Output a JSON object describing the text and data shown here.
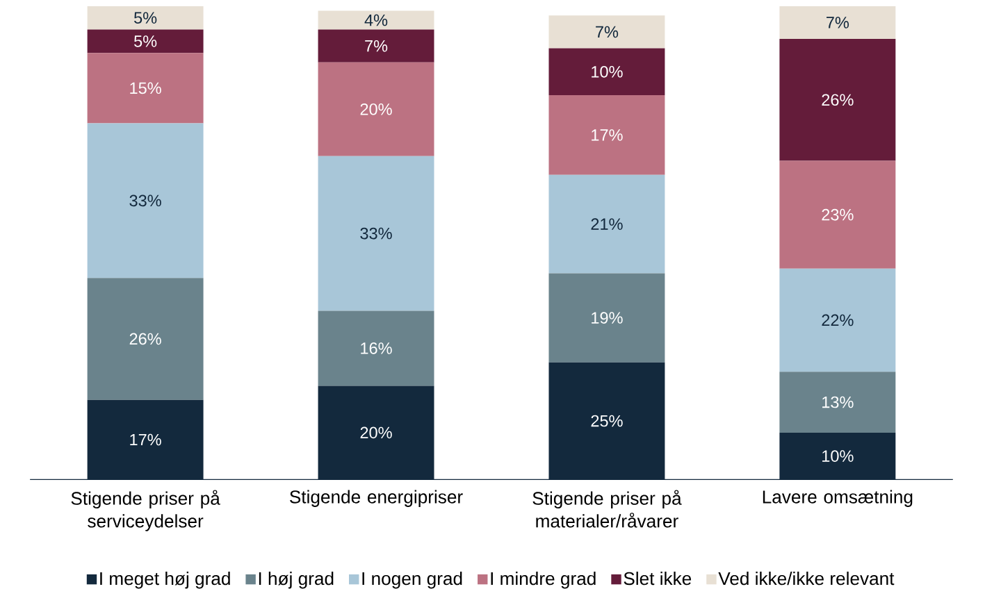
{
  "chart_data": {
    "type": "bar",
    "stacked": true,
    "legend": "bottom",
    "categories": [
      "Stigende priser på serviceydelser",
      "Stigende energipriser",
      "Stigende priser på materialer/råvarer",
      "Lavere omsætning"
    ],
    "series": [
      {
        "name": "I meget høj grad",
        "color": "#13293d",
        "values": [
          17,
          20,
          25,
          10
        ],
        "value_labels": [
          "17%",
          "20%",
          "25%",
          "10%"
        ]
      },
      {
        "name": "I høj grad",
        "color": "#6a838c",
        "values": [
          26,
          16,
          19,
          13
        ],
        "value_labels": [
          "26%",
          "16%",
          "19%",
          "13%"
        ]
      },
      {
        "name": "I nogen grad",
        "color": "#a8c6d8",
        "values": [
          33,
          33,
          21,
          22
        ],
        "value_labels": [
          "33%",
          "33%",
          "21%",
          "22%"
        ]
      },
      {
        "name": "I mindre grad",
        "color": "#bc7282",
        "values": [
          15,
          20,
          17,
          23
        ],
        "value_labels": [
          "15%",
          "20%",
          "17%",
          "23%"
        ]
      },
      {
        "name": "Slet ikke",
        "color": "#641c3a",
        "values": [
          5,
          7,
          10,
          26
        ],
        "value_labels": [
          "5%",
          "7%",
          "10%",
          "26%"
        ]
      },
      {
        "name": "Ved ikke/ikke relevant",
        "color": "#e8e0d4",
        "values": [
          5,
          4,
          7,
          7
        ],
        "value_labels": [
          "5%",
          "4%",
          "7%",
          "7%"
        ]
      }
    ]
  }
}
